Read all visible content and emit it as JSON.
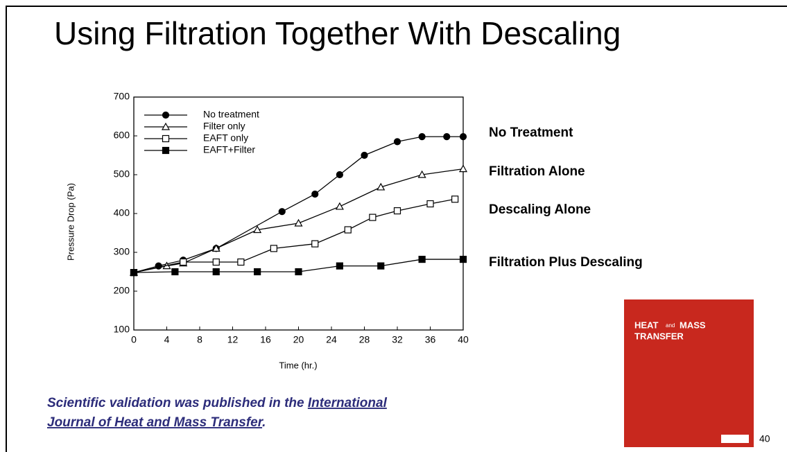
{
  "chart_data": {
    "type": "line",
    "title": "Using Filtration Together With Descaling",
    "x_label": "Time (hr.)",
    "y_label": "Pressure Drop (Pa)",
    "xlim": [
      0,
      40
    ],
    "xticks": [
      0,
      4,
      8,
      12,
      16,
      20,
      24,
      28,
      32,
      36,
      40
    ],
    "ylim": [
      100,
      700
    ],
    "yticks": [
      100,
      200,
      300,
      400,
      500,
      600,
      700
    ],
    "legend": "top-left",
    "series": [
      {
        "name": "No treatment",
        "color": "#000000",
        "marker": "filled-circle",
        "x": [
          0,
          3,
          6,
          10,
          18,
          22,
          25,
          28,
          32,
          35,
          38,
          40
        ],
        "values": [
          248,
          265,
          280,
          310,
          405,
          450,
          500,
          550,
          585,
          598,
          598,
          598
        ]
      },
      {
        "name": "Filter only",
        "color": "#000000",
        "marker": "open-triangle",
        "x": [
          0,
          4,
          6,
          10,
          15,
          20,
          25,
          30,
          35,
          40
        ],
        "values": [
          248,
          265,
          272,
          310,
          358,
          375,
          418,
          468,
          500,
          515
        ]
      },
      {
        "name": "EAFT only",
        "color": "#000000",
        "marker": "open-square",
        "x": [
          0,
          6,
          10,
          13,
          17,
          22,
          26,
          29,
          32,
          36,
          39
        ],
        "values": [
          248,
          275,
          275,
          275,
          310,
          322,
          358,
          390,
          407,
          425,
          437
        ]
      },
      {
        "name": "EAFT+Filter",
        "color": "#000000",
        "marker": "filled-square",
        "x": [
          0,
          5,
          10,
          15,
          20,
          25,
          30,
          35,
          40
        ],
        "values": [
          248,
          250,
          250,
          250,
          250,
          265,
          265,
          282,
          282
        ]
      }
    ],
    "annotations": [
      "No Treatment",
      "Filtration Alone",
      "Descaling Alone",
      "Filtration Plus Descaling"
    ],
    "caption": {
      "text": "Scientific validation was published in the ",
      "link": "International Journal of Heat and Mass Transfer",
      "end": "."
    },
    "cover": {
      "title_top": "HEAT",
      "title_and": "and",
      "title_mass": "MASS",
      "title_bottom": "TRANSFER"
    },
    "page_number": "40"
  }
}
